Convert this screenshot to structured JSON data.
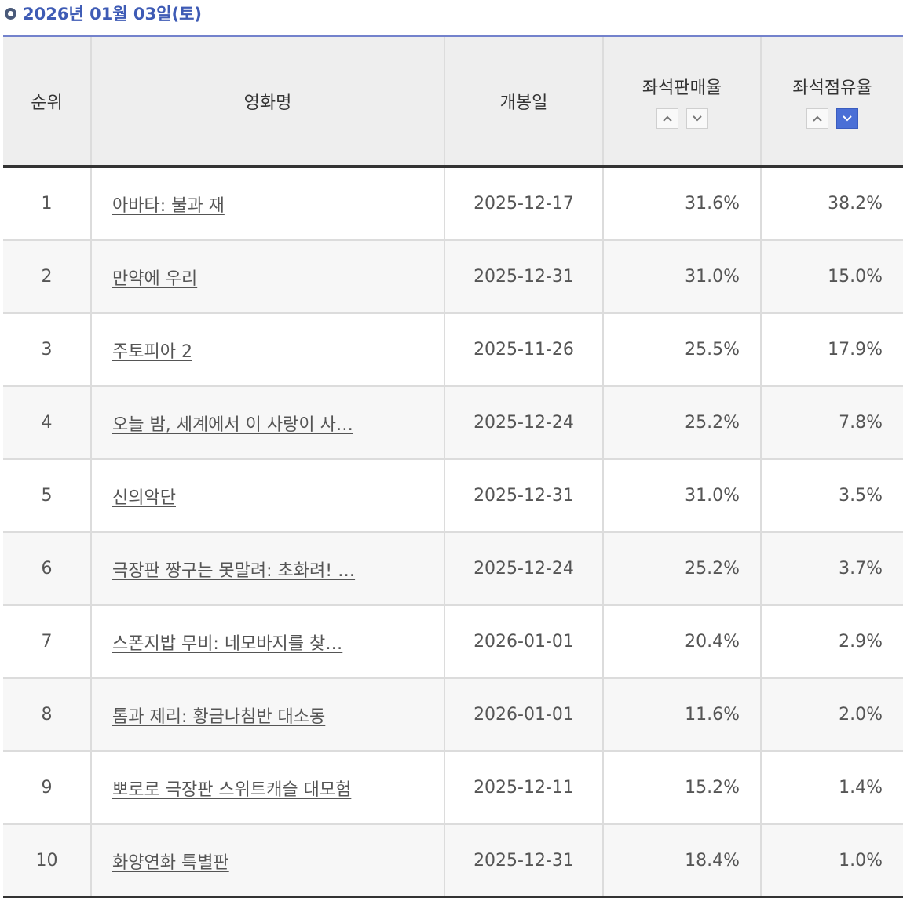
{
  "header": {
    "date": "2026년 01월 03일(토)"
  },
  "columns": {
    "rank": "순위",
    "title": "영화명",
    "release": "개봉일",
    "sales_rate": "좌석판매율",
    "occupancy": "좌석점유율"
  },
  "sort": {
    "active": "occupancy-desc"
  },
  "rows": [
    {
      "rank": "1",
      "title": "아바타: 불과 재",
      "release": "2025-12-17",
      "sales_rate": "31.6%",
      "occupancy": "38.2%"
    },
    {
      "rank": "2",
      "title": "만약에 우리",
      "release": "2025-12-31",
      "sales_rate": "31.0%",
      "occupancy": "15.0%"
    },
    {
      "rank": "3",
      "title": "주토피아 2",
      "release": "2025-11-26",
      "sales_rate": "25.5%",
      "occupancy": "17.9%"
    },
    {
      "rank": "4",
      "title": "오늘 밤, 세계에서 이 사랑이 사…",
      "release": "2025-12-24",
      "sales_rate": "25.2%",
      "occupancy": "7.8%"
    },
    {
      "rank": "5",
      "title": "신의악단",
      "release": "2025-12-31",
      "sales_rate": "31.0%",
      "occupancy": "3.5%"
    },
    {
      "rank": "6",
      "title": "극장판 짱구는 못말려: 초화려! …",
      "release": "2025-12-24",
      "sales_rate": "25.2%",
      "occupancy": "3.7%"
    },
    {
      "rank": "7",
      "title": "스폰지밥 무비: 네모바지를 찾…",
      "release": "2026-01-01",
      "sales_rate": "20.4%",
      "occupancy": "2.9%"
    },
    {
      "rank": "8",
      "title": "톰과 제리: 황금나침반 대소동",
      "release": "2026-01-01",
      "sales_rate": "11.6%",
      "occupancy": "2.0%"
    },
    {
      "rank": "9",
      "title": "뽀로로 극장판 스위트캐슬 대모험",
      "release": "2025-12-11",
      "sales_rate": "15.2%",
      "occupancy": "1.4%"
    },
    {
      "rank": "10",
      "title": "화양연화 특별판",
      "release": "2025-12-31",
      "sales_rate": "18.4%",
      "occupancy": "1.0%"
    }
  ]
}
